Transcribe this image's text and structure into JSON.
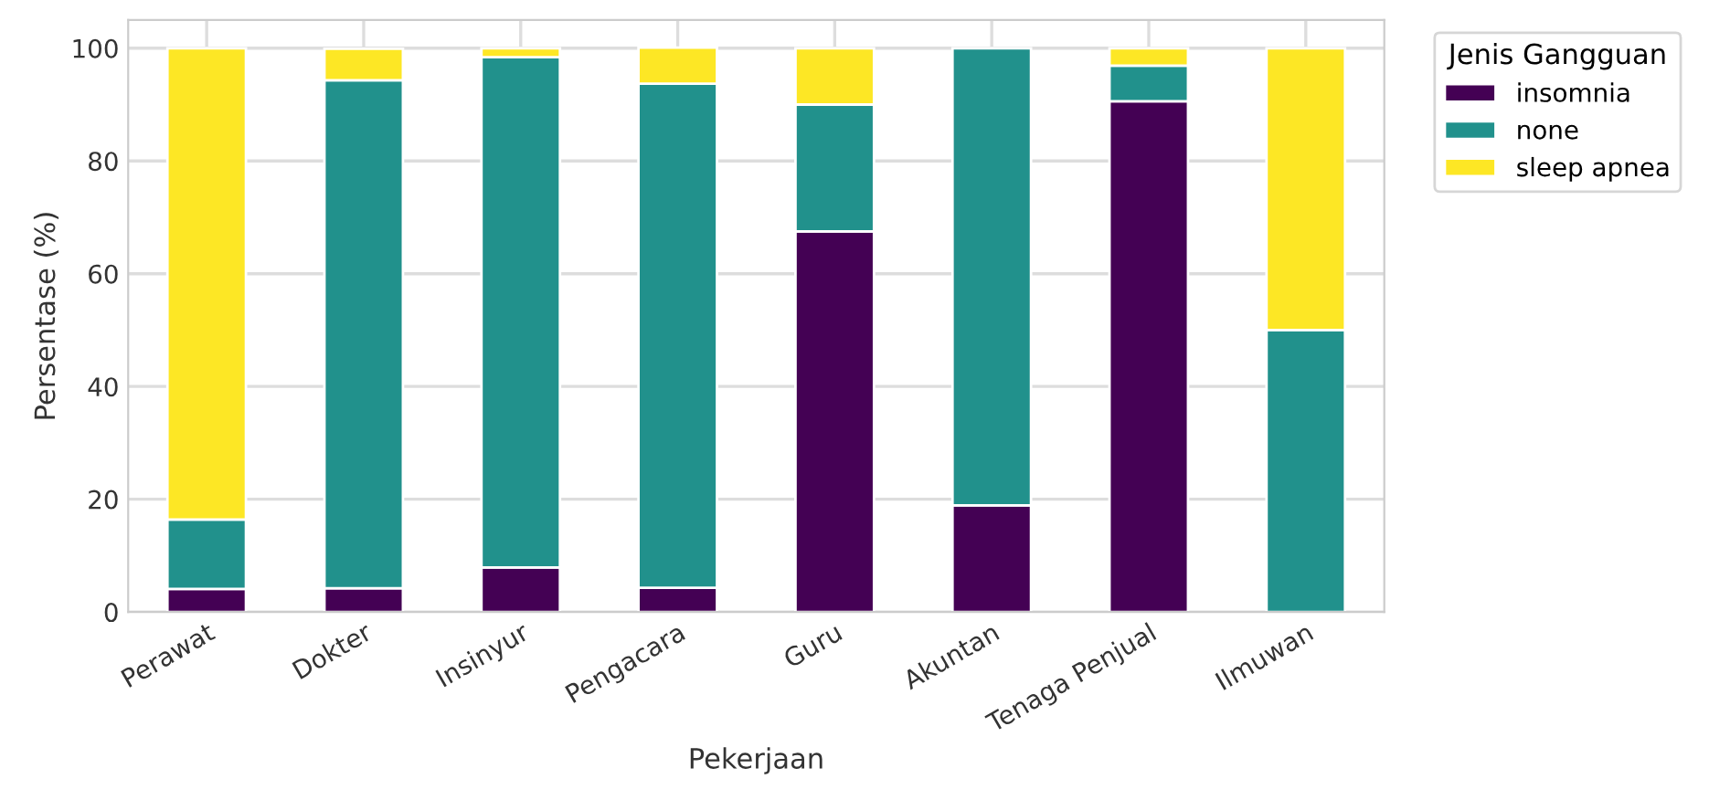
{
  "chart_data": {
    "type": "bar",
    "stacked": true,
    "xlabel": "Pekerjaan",
    "ylabel": "Persentase (%)",
    "legend_title": "Jenis Gangguan",
    "legend": "top right",
    "grid": true,
    "categories": [
      "Perawat",
      "Dokter",
      "Insinyur",
      "Pengacara",
      "Guru",
      "Akuntan",
      "Tenaga Penjual",
      "Ilmuwan"
    ],
    "ylim": [
      0,
      105
    ],
    "yticks": [
      0,
      20,
      40,
      60,
      80,
      100
    ],
    "series": [
      {
        "name": "insomnia",
        "color": "#440154",
        "values": [
          4.1,
          4.2,
          7.9,
          4.3,
          67.5,
          18.9,
          90.6,
          null
        ]
      },
      {
        "name": "none",
        "color": "#21918c",
        "values": [
          12.3,
          90.1,
          90.5,
          89.4,
          22.5,
          81.1,
          6.3,
          50
        ]
      },
      {
        "name": "sleep apnea",
        "color": "#fde725",
        "values": [
          83.6,
          5.6,
          1.6,
          6.4,
          10,
          null,
          3.1,
          50
        ]
      }
    ]
  }
}
